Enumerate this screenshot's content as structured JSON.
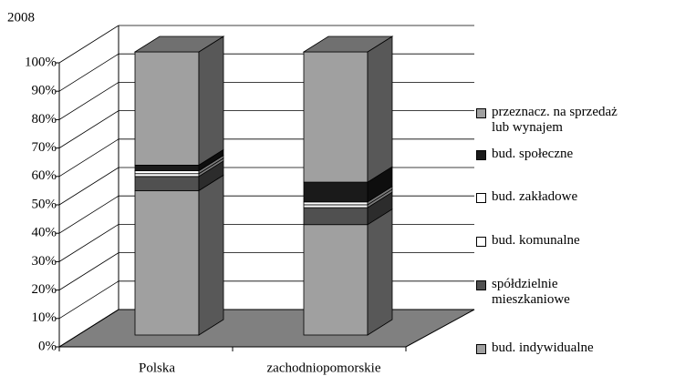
{
  "chart_data": {
    "type": "bar",
    "stacked": true,
    "title": "2008",
    "categories": [
      "Polska",
      "zachodniopomorskie"
    ],
    "series": [
      {
        "name": "bud. indywidualne",
        "color": "#a0a0a0",
        "values": [
          51,
          39
        ]
      },
      {
        "name": "spółdzielnie mieszkaniowe",
        "color": "#505050",
        "values": [
          5,
          6
        ]
      },
      {
        "name": "bud. komunalne",
        "color": "#ffffff",
        "values": [
          1,
          1
        ]
      },
      {
        "name": "bud. zakładowe",
        "color": "#ffffff",
        "values": [
          1,
          1
        ]
      },
      {
        "name": "bud. społeczne",
        "color": "#1a1a1a",
        "values": [
          2,
          7
        ]
      },
      {
        "name": "przeznacz. na sprzedaż lub wynajem",
        "color": "#a0a0a0",
        "values": [
          40,
          46
        ]
      }
    ],
    "ylim": [
      0,
      100
    ],
    "yticks": [
      {
        "value": 0,
        "label": "0%"
      },
      {
        "value": 10,
        "label": "10%"
      },
      {
        "value": 20,
        "label": "20%"
      },
      {
        "value": 30,
        "label": "30%"
      },
      {
        "value": 40,
        "label": "40%"
      },
      {
        "value": 50,
        "label": "50%"
      },
      {
        "value": 60,
        "label": "60%"
      },
      {
        "value": 70,
        "label": "70%"
      },
      {
        "value": 80,
        "label": "80%"
      },
      {
        "value": 90,
        "label": "90%"
      },
      {
        "value": 100,
        "label": "100%"
      }
    ],
    "grid": true
  }
}
